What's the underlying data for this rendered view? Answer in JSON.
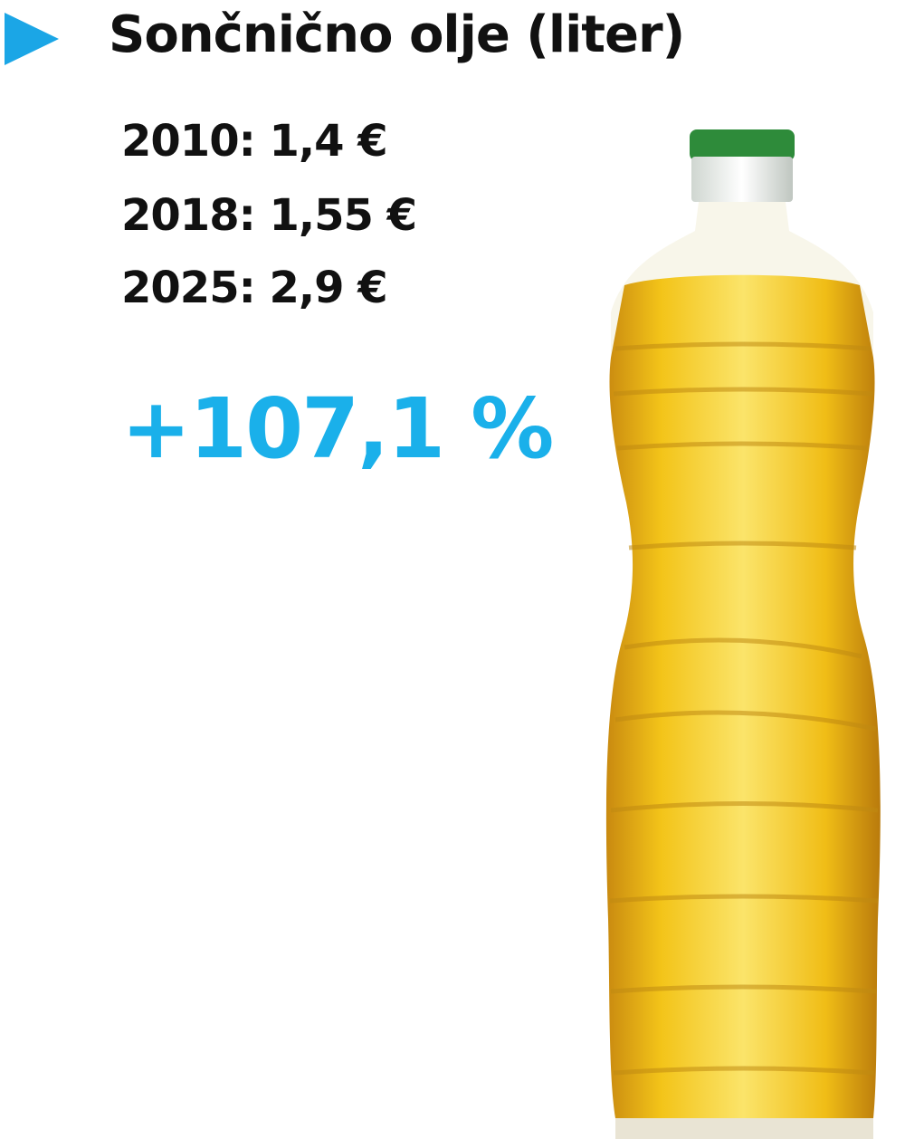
{
  "title": "Sončnično olje (liter)",
  "prices": [
    {
      "year": "2010:",
      "value": "1,4 €"
    },
    {
      "year": "2018:",
      "value": "1,55 €"
    },
    {
      "year": "2025:",
      "value": "2,9 €"
    }
  ],
  "change": "+107,1 %",
  "colors": {
    "accent": "#1ab0ea",
    "bullet": "#1ba6e6",
    "cap": "#2e8b3a",
    "oil": "#f2c31a"
  },
  "icons": {
    "bullet": "triangle-right-icon",
    "image": "oil-bottle"
  }
}
